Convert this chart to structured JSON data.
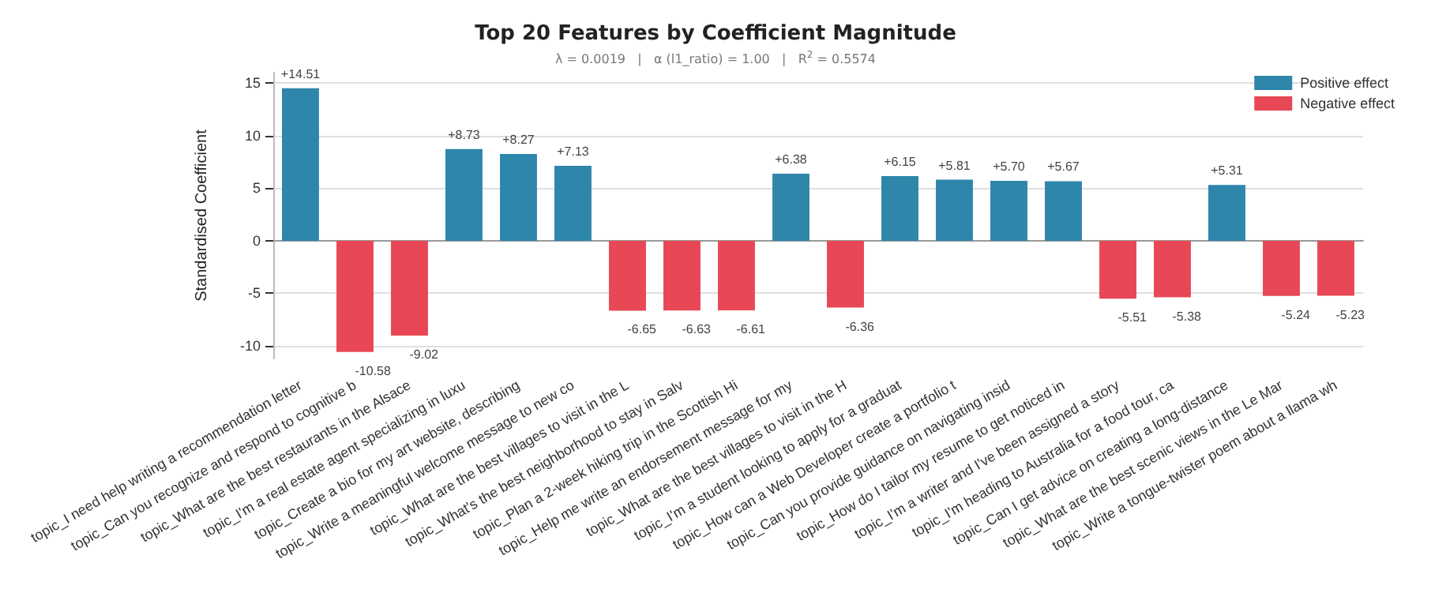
{
  "chart_data": {
    "type": "bar",
    "title": "Top 20 Features by Coefficient Magnitude",
    "subtitle": "λ = 0.0019   |   α (l1_ratio) = 1.00   |   R$^{2}$ = 0.5574",
    "ylabel": "Standardised Coefficient",
    "categories": [
      "topic_I need help writing a recommendation letter",
      "topic_Can you recognize and respond to cognitive b",
      "topic_What are the best restaurants in the Alsace",
      "topic_I'm a real estate agent specializing in luxu",
      "topic_Create a bio for my art website, describing",
      "topic_Write a meaningful welcome message to new co",
      "topic_What are the best villages to visit in the L",
      "topic_What's the best neighborhood to stay in Salv",
      "topic_Plan a 2-week hiking trip in the Scottish Hi",
      "topic_Help me write an endorsement message for my",
      "topic_What are the best villages to visit in the H",
      "topic_I'm a student looking to apply for a graduat",
      "topic_How can a Web Developer create a portfolio t",
      "topic_Can you provide guidance on navigating insid",
      "topic_How do I tailor my resume to get noticed in",
      "topic_I'm a writer and I've been assigned a story",
      "topic_I'm heading to Australia for a food tour, ca",
      "topic_Can I get advice on creating a long-distance",
      "topic_What are the best scenic views in the Le Mar",
      "topic_Write a tongue-twister poem about a llama wh"
    ],
    "series": [
      {
        "name": "Positive effect",
        "color": "#2e86ab",
        "values": [
          14.51,
          null,
          null,
          8.73,
          8.27,
          7.13,
          null,
          null,
          null,
          6.38,
          null,
          6.15,
          5.81,
          5.7,
          5.67,
          null,
          null,
          5.31,
          null,
          null
        ],
        "value_labels": [
          "+14.51",
          null,
          null,
          "+8.73",
          "+8.27",
          "+7.13",
          null,
          null,
          null,
          "+6.38",
          null,
          "+6.15",
          "+5.81",
          "+5.70",
          "+5.67",
          null,
          null,
          "+5.31",
          null,
          null
        ]
      },
      {
        "name": "Negative effect",
        "color": "#e84855",
        "values": [
          null,
          -10.58,
          -9.02,
          null,
          null,
          null,
          -6.65,
          -6.63,
          -6.61,
          null,
          -6.36,
          null,
          null,
          null,
          null,
          -5.51,
          -5.38,
          null,
          -5.24,
          -5.23
        ],
        "value_labels": [
          null,
          "-10.58",
          "-9.02",
          null,
          null,
          null,
          "-6.65",
          "-6.63",
          "-6.61",
          null,
          "-6.36",
          null,
          null,
          null,
          null,
          "-5.51",
          "-5.38",
          null,
          "-5.24",
          "-5.23"
        ]
      }
    ],
    "ylim": [
      -11.2,
      16
    ],
    "yticks": [
      -10,
      -5,
      0,
      5,
      10,
      15
    ],
    "grid": "y",
    "legend": "top right"
  }
}
